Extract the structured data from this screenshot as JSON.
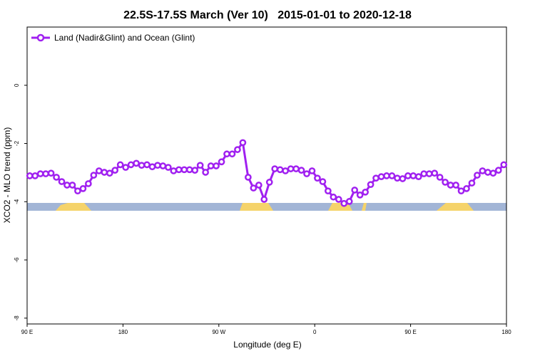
{
  "chart_data": {
    "type": "line",
    "title": "22.5S-17.5S March (Ver 10)   2015-01-01 to 2020-12-18",
    "x_label": "Longitude (deg E)",
    "y_label": "XCO2 - MLO trend (ppm)",
    "xlim": [
      90,
      540
    ],
    "ylim": [
      -8.2,
      2
    ],
    "xticks": [
      {
        "value": 90,
        "label": "90 E"
      },
      180,
      {
        "value": 270,
        "label": "90 W"
      },
      {
        "value": 360,
        "label": "0"
      },
      {
        "value": 450,
        "label": "90 E"
      },
      {
        "value": 540,
        "label": "180"
      }
    ],
    "yticks": [
      0,
      -2,
      -4,
      -6,
      -8
    ],
    "legend": "top-left",
    "x": [
      92.5,
      97.5,
      102.5,
      107.5,
      112.5,
      117.5,
      122.5,
      127.5,
      132.5,
      137.5,
      142.5,
      147.5,
      152.5,
      157.5,
      162.5,
      167.5,
      172.5,
      177.5,
      182.5,
      187.5,
      192.5,
      197.5,
      202.5,
      207.5,
      212.5,
      217.5,
      222.5,
      227.5,
      232.5,
      237.5,
      242.5,
      247.5,
      252.5,
      257.5,
      262.5,
      267.5,
      272.5,
      277.5,
      282.5,
      287.5,
      292.5,
      297.5,
      302.5,
      307.5,
      312.5,
      317.5,
      322.5,
      327.5,
      332.5,
      337.5,
      342.5,
      347.5,
      352.5,
      357.5,
      362.5,
      367.5,
      372.5,
      377.5,
      382.5,
      387.5,
      392.5,
      397.5,
      402.5,
      407.5,
      412.5,
      417.5,
      422.5,
      427.5,
      432.5,
      437.5,
      442.5,
      447.5,
      452.5,
      457.5,
      462.5,
      467.5,
      472.5,
      477.5,
      482.5,
      487.5,
      492.5,
      497.5,
      502.5,
      507.5,
      512.5,
      517.5,
      522.5,
      527.5,
      532.5,
      537.5
    ],
    "series": [
      {
        "name": "Land (Nadir&Glint) and Ocean (Glint)",
        "color": "#a020f0",
        "values": [
          -3.11,
          -3.11,
          -3.04,
          -3.04,
          -3.02,
          -3.16,
          -3.31,
          -3.43,
          -3.43,
          -3.63,
          -3.55,
          -3.38,
          -3.09,
          -2.94,
          -2.99,
          -3.02,
          -2.92,
          -2.73,
          -2.82,
          -2.73,
          -2.68,
          -2.75,
          -2.73,
          -2.8,
          -2.75,
          -2.77,
          -2.82,
          -2.94,
          -2.9,
          -2.9,
          -2.9,
          -2.92,
          -2.75,
          -2.99,
          -2.77,
          -2.77,
          -2.63,
          -2.36,
          -2.36,
          -2.21,
          -1.97,
          -3.16,
          -3.53,
          -3.43,
          -3.92,
          -3.33,
          -2.87,
          -2.9,
          -2.94,
          -2.87,
          -2.87,
          -2.92,
          -3.04,
          -2.94,
          -3.19,
          -3.31,
          -3.63,
          -3.84,
          -3.92,
          -4.06,
          -3.99,
          -3.6,
          -3.77,
          -3.67,
          -3.41,
          -3.19,
          -3.14,
          -3.11,
          -3.11,
          -3.19,
          -3.21,
          -3.11,
          -3.11,
          -3.14,
          -3.04,
          -3.04,
          -3.02,
          -3.16,
          -3.33,
          -3.43,
          -3.43,
          -3.63,
          -3.55,
          -3.36,
          -3.09,
          -2.94,
          -2.99,
          -3.02,
          -2.92,
          -2.73
        ]
      }
    ]
  }
}
